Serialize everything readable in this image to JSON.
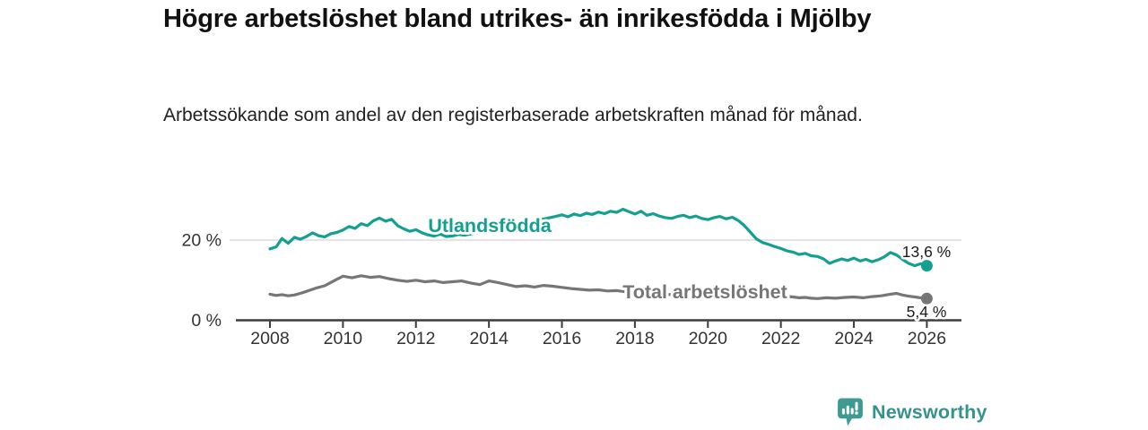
{
  "header": {
    "title": "Högre arbetslöshet bland utrikes- än inrikesfödda i Mjölby",
    "subtitle": "Arbetssökande som andel av den registerbaserade arbetskraften månad för månad."
  },
  "footer": {
    "brand": "Newsworthy"
  },
  "colors": {
    "accent_teal": "#14A090",
    "series_gray": "#767676",
    "brand_teal": "#3E9A93",
    "axis": "#3C3C3C",
    "grid": "#DBDBDB",
    "text": "#1A1A1A"
  },
  "chart_data": {
    "type": "line",
    "title": "Högre arbetslöshet bland utrikes- än inrikesfödda i Mjölby",
    "subtitle": "Arbetssökande som andel av den registerbaserade arbetskraften månad för månad.",
    "xlabel": "",
    "ylabel": "",
    "grid": "horizontal, only at 20 %",
    "legend_position": "inline labels on lines",
    "xlim": [
      2007.6,
      2026.9
    ],
    "ylim": [
      0,
      33
    ],
    "x_ticks": [
      2008,
      2010,
      2012,
      2014,
      2016,
      2018,
      2020,
      2022,
      2024,
      2026
    ],
    "y_ticks": [
      {
        "value": 0,
        "label": "0 %"
      },
      {
        "value": 20,
        "label": "20 %"
      }
    ],
    "series": [
      {
        "name": "Utlandsfödda",
        "color": "#14A090",
        "end_value": 13.6,
        "end_label": "13,6 %",
        "points": [
          [
            2008.0,
            17.8
          ],
          [
            2008.17,
            18.3
          ],
          [
            2008.33,
            20.4
          ],
          [
            2008.5,
            19.2
          ],
          [
            2008.67,
            20.7
          ],
          [
            2008.83,
            20.2
          ],
          [
            2009.0,
            20.9
          ],
          [
            2009.17,
            21.8
          ],
          [
            2009.33,
            21.1
          ],
          [
            2009.5,
            20.8
          ],
          [
            2009.67,
            21.6
          ],
          [
            2009.83,
            21.9
          ],
          [
            2010.0,
            22.5
          ],
          [
            2010.17,
            23.4
          ],
          [
            2010.33,
            22.9
          ],
          [
            2010.5,
            24.1
          ],
          [
            2010.67,
            23.6
          ],
          [
            2010.83,
            24.8
          ],
          [
            2011.0,
            25.5
          ],
          [
            2011.17,
            24.7
          ],
          [
            2011.33,
            25.2
          ],
          [
            2011.5,
            23.6
          ],
          [
            2011.67,
            22.8
          ],
          [
            2011.83,
            22.2
          ],
          [
            2012.0,
            22.6
          ],
          [
            2012.17,
            21.8
          ],
          [
            2012.33,
            21.3
          ],
          [
            2012.5,
            21.0
          ],
          [
            2012.67,
            21.5
          ],
          [
            2012.83,
            20.9
          ],
          [
            2013.0,
            21.0
          ],
          [
            2013.17,
            21.4
          ],
          [
            2013.33,
            21.2
          ],
          [
            2013.58,
            21.7
          ],
          [
            2013.83,
            22.1
          ],
          [
            2014.08,
            22.6
          ],
          [
            2014.33,
            23.1
          ],
          [
            2014.58,
            23.6
          ],
          [
            2014.83,
            24.1
          ],
          [
            2015.08,
            24.6
          ],
          [
            2015.33,
            25.0
          ],
          [
            2015.58,
            25.4
          ],
          [
            2015.83,
            25.9
          ],
          [
            2016.0,
            26.3
          ],
          [
            2016.17,
            25.8
          ],
          [
            2016.33,
            26.5
          ],
          [
            2016.5,
            26.1
          ],
          [
            2016.67,
            26.7
          ],
          [
            2016.83,
            26.4
          ],
          [
            2017.0,
            27.0
          ],
          [
            2017.17,
            26.6
          ],
          [
            2017.33,
            27.2
          ],
          [
            2017.5,
            26.9
          ],
          [
            2017.67,
            27.7
          ],
          [
            2017.83,
            27.1
          ],
          [
            2018.0,
            26.5
          ],
          [
            2018.17,
            27.2
          ],
          [
            2018.33,
            26.2
          ],
          [
            2018.5,
            26.6
          ],
          [
            2018.67,
            26.0
          ],
          [
            2018.83,
            25.6
          ],
          [
            2019.0,
            25.4
          ],
          [
            2019.17,
            25.9
          ],
          [
            2019.33,
            26.2
          ],
          [
            2019.5,
            25.6
          ],
          [
            2019.67,
            26.0
          ],
          [
            2019.83,
            25.4
          ],
          [
            2020.0,
            25.1
          ],
          [
            2020.17,
            25.6
          ],
          [
            2020.33,
            25.9
          ],
          [
            2020.5,
            25.3
          ],
          [
            2020.67,
            25.7
          ],
          [
            2020.83,
            24.9
          ],
          [
            2021.0,
            23.6
          ],
          [
            2021.17,
            21.9
          ],
          [
            2021.33,
            20.3
          ],
          [
            2021.5,
            19.4
          ],
          [
            2021.67,
            18.9
          ],
          [
            2021.83,
            18.4
          ],
          [
            2022.0,
            17.9
          ],
          [
            2022.17,
            17.3
          ],
          [
            2022.33,
            17.0
          ],
          [
            2022.5,
            16.4
          ],
          [
            2022.67,
            16.7
          ],
          [
            2022.83,
            16.1
          ],
          [
            2023.0,
            15.9
          ],
          [
            2023.17,
            15.3
          ],
          [
            2023.33,
            14.2
          ],
          [
            2023.5,
            14.8
          ],
          [
            2023.67,
            15.3
          ],
          [
            2023.83,
            14.9
          ],
          [
            2024.0,
            15.5
          ],
          [
            2024.17,
            14.8
          ],
          [
            2024.33,
            15.2
          ],
          [
            2024.5,
            14.6
          ],
          [
            2024.67,
            15.1
          ],
          [
            2024.83,
            15.8
          ],
          [
            2025.0,
            16.9
          ],
          [
            2025.17,
            16.3
          ],
          [
            2025.33,
            15.2
          ],
          [
            2025.5,
            14.2
          ],
          [
            2025.67,
            13.6
          ],
          [
            2025.83,
            14.1
          ],
          [
            2026.0,
            13.6
          ]
        ]
      },
      {
        "name": "Total arbetslöshet",
        "color": "#767676",
        "end_value": 5.4,
        "end_label": "5,4 %",
        "points": [
          [
            2008.0,
            6.5
          ],
          [
            2008.17,
            6.2
          ],
          [
            2008.33,
            6.4
          ],
          [
            2008.5,
            6.1
          ],
          [
            2008.67,
            6.3
          ],
          [
            2008.83,
            6.7
          ],
          [
            2009.0,
            7.2
          ],
          [
            2009.25,
            8.0
          ],
          [
            2009.5,
            8.6
          ],
          [
            2009.75,
            9.8
          ],
          [
            2010.0,
            11.0
          ],
          [
            2010.25,
            10.6
          ],
          [
            2010.5,
            11.1
          ],
          [
            2010.75,
            10.7
          ],
          [
            2011.0,
            10.9
          ],
          [
            2011.25,
            10.4
          ],
          [
            2011.5,
            10.0
          ],
          [
            2011.75,
            9.7
          ],
          [
            2012.0,
            10.0
          ],
          [
            2012.25,
            9.6
          ],
          [
            2012.5,
            9.8
          ],
          [
            2012.75,
            9.4
          ],
          [
            2013.0,
            9.6
          ],
          [
            2013.25,
            9.8
          ],
          [
            2013.5,
            9.3
          ],
          [
            2013.75,
            8.9
          ],
          [
            2014.0,
            9.8
          ],
          [
            2014.25,
            9.4
          ],
          [
            2014.5,
            8.9
          ],
          [
            2014.75,
            8.4
          ],
          [
            2015.0,
            8.6
          ],
          [
            2015.25,
            8.3
          ],
          [
            2015.5,
            8.7
          ],
          [
            2015.75,
            8.5
          ],
          [
            2016.0,
            8.2
          ],
          [
            2016.25,
            7.9
          ],
          [
            2016.5,
            7.7
          ],
          [
            2016.75,
            7.5
          ],
          [
            2017.0,
            7.6
          ],
          [
            2017.25,
            7.3
          ],
          [
            2017.5,
            7.4
          ],
          [
            2017.75,
            7.1
          ],
          [
            2018.0,
            6.9
          ],
          [
            2018.33,
            6.7
          ],
          [
            2018.67,
            6.5
          ],
          [
            2019.0,
            6.4
          ],
          [
            2019.33,
            6.6
          ],
          [
            2019.67,
            6.9
          ],
          [
            2020.0,
            7.3
          ],
          [
            2020.33,
            7.8
          ],
          [
            2020.67,
            7.6
          ],
          [
            2021.0,
            7.3
          ],
          [
            2021.33,
            6.9
          ],
          [
            2021.67,
            6.4
          ],
          [
            2022.0,
            6.1
          ],
          [
            2022.33,
            5.8
          ],
          [
            2022.5,
            5.6
          ],
          [
            2022.67,
            5.7
          ],
          [
            2022.83,
            5.5
          ],
          [
            2023.0,
            5.4
          ],
          [
            2023.25,
            5.6
          ],
          [
            2023.5,
            5.5
          ],
          [
            2023.75,
            5.7
          ],
          [
            2024.0,
            5.8
          ],
          [
            2024.25,
            5.6
          ],
          [
            2024.5,
            5.9
          ],
          [
            2024.75,
            6.1
          ],
          [
            2025.0,
            6.5
          ],
          [
            2025.17,
            6.7
          ],
          [
            2025.33,
            6.3
          ],
          [
            2025.5,
            6.0
          ],
          [
            2025.67,
            5.8
          ],
          [
            2025.83,
            5.6
          ],
          [
            2026.0,
            5.4
          ]
        ]
      }
    ]
  }
}
